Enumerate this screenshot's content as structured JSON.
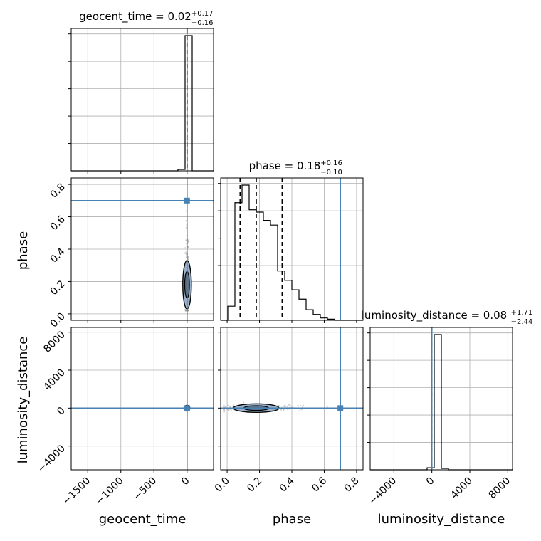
{
  "chart_data": {
    "type": "corner",
    "parameters": [
      "geocent_time",
      "phase",
      "luminosity_distance"
    ],
    "axis_labels": {
      "x": [
        "geocent_time",
        "phase",
        "luminosity_distance"
      ],
      "y": [
        "phase",
        "luminosity_distance"
      ]
    },
    "titles": [
      {
        "param": "geocent_time",
        "text": "geocent_time = 0.02",
        "plus": "+0.17",
        "minus": "−0.16"
      },
      {
        "param": "phase",
        "text": "phase = 0.18",
        "plus": "+0.16",
        "minus": "−0.10"
      },
      {
        "param": "luminosity_distance",
        "text": "luminosity_distance = 0.08",
        "plus": "+1.71",
        "minus": "−2.44"
      }
    ],
    "ranges": {
      "geocent_time": [
        -1750,
        400
      ],
      "phase": [
        -0.04,
        0.84
      ],
      "luminosity_distance": [
        -6500,
        8500
      ]
    },
    "ticks": {
      "geocent_time": {
        "values": [
          -1500,
          -1000,
          -500,
          0
        ],
        "labels": [
          "−1500",
          "−1000",
          "−500",
          "0"
        ]
      },
      "phase": {
        "values": [
          0.0,
          0.2,
          0.4,
          0.6,
          0.8
        ],
        "labels": [
          "0.0",
          "0.2",
          "0.4",
          "0.6",
          "0.8"
        ]
      },
      "luminosity_distance": {
        "values": [
          -4000,
          0,
          4000,
          8000
        ],
        "labels": [
          "−4000",
          "0",
          "4000",
          "8000"
        ]
      }
    },
    "truths": {
      "geocent_time": 0.02,
      "phase": 0.7,
      "luminosity_distance": 0.08
    },
    "quantiles": {
      "geocent_time": [
        -0.14,
        0.02,
        0.19
      ],
      "phase": [
        0.08,
        0.18,
        0.34
      ],
      "luminosity_distance": [
        -2.36,
        0.08,
        1.79
      ]
    },
    "histograms": {
      "geocent_time": {
        "edges": [
          -1750,
          -1642.5,
          -1535,
          -1427.5,
          -1320,
          -1212.5,
          -1105,
          -997.5,
          -890,
          -782.5,
          -675,
          -567.5,
          -460,
          -352.5,
          -245,
          -137.5,
          -30,
          77.5,
          185,
          292.5,
          400
        ],
        "counts": [
          0,
          0,
          0,
          0,
          0,
          0,
          0,
          0,
          0,
          0,
          0,
          0,
          0,
          0,
          0,
          2,
          197,
          0,
          0,
          0
        ]
      },
      "phase": {
        "edges": [
          -0.04,
          0.004,
          0.048,
          0.092,
          0.136,
          0.18,
          0.224,
          0.268,
          0.312,
          0.356,
          0.4,
          0.444,
          0.488,
          0.532,
          0.576,
          0.62,
          0.664,
          0.708,
          0.752,
          0.796,
          0.84
        ],
        "counts": [
          0,
          12,
          100,
          115,
          94,
          92,
          85,
          81,
          42,
          34,
          26,
          18,
          9,
          5,
          2,
          1,
          0,
          0,
          0,
          0
        ]
      },
      "luminosity_distance": {
        "edges": [
          -6500,
          -5750,
          -5000,
          -4250,
          -3500,
          -2750,
          -2000,
          -1250,
          -500,
          250,
          1000,
          1750,
          2500,
          3250,
          4000,
          4750,
          5500,
          6250,
          7000,
          7750,
          8500
        ],
        "counts": [
          0,
          0,
          0,
          0,
          0,
          0,
          0,
          0,
          3,
          195,
          2,
          0,
          0,
          0,
          0,
          0,
          0,
          0,
          0,
          0
        ]
      }
    },
    "grid": true
  }
}
